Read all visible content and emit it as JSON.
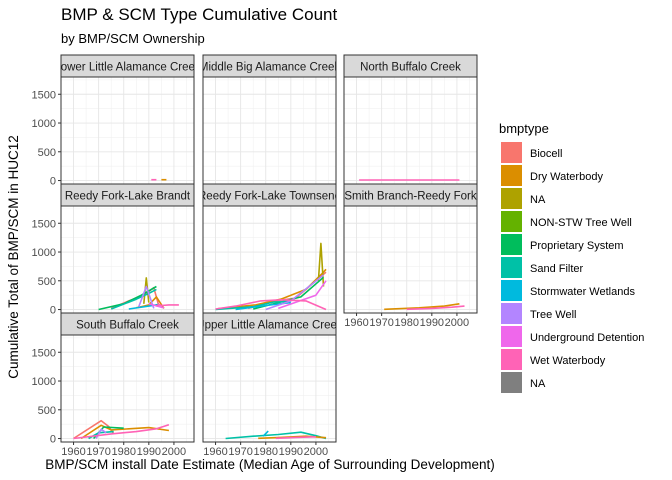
{
  "chart_data": {
    "type": "line",
    "title": "BMP & SCM Type Cumulative Count",
    "subtitle": "by BMP/SCM Ownership",
    "xlabel": "BMP/SCM install Date Estimate (Median Age of Surrounding Development)",
    "ylabel": "Cumulative Total of BMP/SCM in HUC12",
    "xlim": [
      1955,
      2008
    ],
    "ylim": [
      -60,
      1800
    ],
    "x_ticks": [
      1960,
      1970,
      1980,
      1990,
      2000
    ],
    "x_tick_labels": [
      "1960",
      "1970",
      "1980",
      "1990",
      "2000"
    ],
    "y_ticks": [
      0,
      500,
      1000,
      1500
    ],
    "y_tick_labels": [
      "0",
      "500",
      "1000",
      "1500"
    ],
    "grid": true,
    "legend": {
      "title": "bmptype",
      "placement": "right",
      "items": [
        {
          "label": "Biocell",
          "color": "#F8766D"
        },
        {
          "label": "Dry Waterbody",
          "color": "#DB8E00"
        },
        {
          "label": "NA",
          "color": "#AEA200"
        },
        {
          "label": "NON-STW Tree Well",
          "color": "#64B200"
        },
        {
          "label": "Proprietary System",
          "color": "#00BD5C"
        },
        {
          "label": "Sand Filter",
          "color": "#00C1A7"
        },
        {
          "label": "Stormwater Wetlands",
          "color": "#00BADE"
        },
        {
          "label": "Tree Well",
          "color": "#B385FF"
        },
        {
          "label": "Underground Detention",
          "color": "#EF67EB"
        },
        {
          "label": "Wet Waterbody",
          "color": "#FF63B6"
        },
        {
          "label": "NA",
          "color": "#7F7F7F"
        }
      ]
    },
    "panels": [
      {
        "strip": "Lower Little Alamance Creek",
        "series": [
          {
            "name": "Wet Waterbody",
            "x": [
              1991,
              1993
            ],
            "y": [
              15,
              15
            ]
          },
          {
            "name": "Dry Waterbody",
            "x": [
              1995,
              1997
            ],
            "y": [
              15,
              15
            ]
          }
        ]
      },
      {
        "strip": "Middle Big Alamance Creek",
        "series": []
      },
      {
        "strip": "North Buffalo Creek",
        "series": [
          {
            "name": "Wet Waterbody",
            "x": [
              1961,
              2001
            ],
            "y": [
              10,
              10
            ]
          }
        ]
      },
      {
        "strip": "Reedy Fork-Lake Brandt",
        "series": [
          {
            "name": "Biocell",
            "x": [
              1975,
              1982,
              1988,
              1992,
              1994
            ],
            "y": [
              20,
              150,
              250,
              380,
              60
            ]
          },
          {
            "name": "Dry Waterbody",
            "x": [
              1985,
              1988,
              1990,
              1993,
              1996
            ],
            "y": [
              30,
              60,
              80,
              220,
              20
            ]
          },
          {
            "name": "NA",
            "x": [
              1988,
              1989,
              1990
            ],
            "y": [
              100,
              550,
              120
            ]
          },
          {
            "name": "Proprietary System",
            "x": [
              1970,
              1980,
              1987,
              1993
            ],
            "y": [
              0,
              100,
              250,
              400
            ]
          },
          {
            "name": "Sand Filter",
            "x": [
              1975,
              1985,
              1990,
              1993
            ],
            "y": [
              10,
              180,
              280,
              350
            ]
          },
          {
            "name": "Stormwater Wetlands",
            "x": [
              1982,
              1990,
              1994
            ],
            "y": [
              10,
              60,
              90
            ]
          },
          {
            "name": "Tree Well",
            "x": [
              1986,
              1989,
              1992
            ],
            "y": [
              50,
              400,
              20
            ]
          },
          {
            "name": "Underground Detention",
            "x": [
              1990,
              1996
            ],
            "y": [
              100,
              30
            ]
          },
          {
            "name": "Wet Waterbody",
            "x": [
              1993,
              1994,
              1995,
              1998,
              2002
            ],
            "y": [
              60,
              90,
              70,
              80,
              80
            ]
          }
        ]
      },
      {
        "strip": "Reedy Fork-Lake Townsend",
        "series": [
          {
            "name": "Biocell",
            "x": [
              1973,
              1984,
              1992,
              2004
            ],
            "y": [
              20,
              150,
              200,
              650
            ]
          },
          {
            "name": "Dry Waterbody",
            "x": [
              1961,
              1976,
              1986,
              1996,
              2003,
              2004
            ],
            "y": [
              15,
              80,
              180,
              350,
              650,
              700
            ]
          },
          {
            "name": "NA",
            "x": [
              2001,
              2002,
              2003
            ],
            "y": [
              500,
              1150,
              400
            ]
          },
          {
            "name": "Proprietary System",
            "x": [
              1975,
              1985,
              1994,
              2003
            ],
            "y": [
              10,
              120,
              220,
              560
            ]
          },
          {
            "name": "Sand Filter",
            "x": [
              1960,
              1975,
              1983,
              1990
            ],
            "y": [
              0,
              50,
              130,
              140
            ]
          },
          {
            "name": "Stormwater Wetlands",
            "x": [
              1968,
              1980,
              1990
            ],
            "y": [
              0,
              70,
              120
            ]
          },
          {
            "name": "Tree Well",
            "x": [
              1980,
              1990,
              2003
            ],
            "y": [
              0,
              150,
              600
            ]
          },
          {
            "name": "Underground Detention",
            "x": [
              1985,
              2000,
              2004
            ],
            "y": [
              20,
              250,
              500
            ]
          },
          {
            "name": "Wet Waterbody",
            "x": [
              1960,
              1968,
              1978,
              1986,
              1996,
              2004
            ],
            "y": [
              10,
              60,
              150,
              170,
              150,
              0
            ]
          }
        ]
      },
      {
        "strip": "Smith Branch-Reedy Fork",
        "series": [
          {
            "name": "Dry Waterbody",
            "x": [
              1971,
              1985,
              1995,
              2001
            ],
            "y": [
              5,
              30,
              60,
              100
            ]
          },
          {
            "name": "Wet Waterbody",
            "x": [
              1980,
              1990,
              1998,
              2003
            ],
            "y": [
              5,
              20,
              40,
              60
            ]
          }
        ]
      },
      {
        "strip": "South Buffalo Creek",
        "series": [
          {
            "name": "Biocell",
            "x": [
              1960,
              1971,
              1974,
              1976
            ],
            "y": [
              0,
              310,
              210,
              80
            ]
          },
          {
            "name": "Dry Waterbody",
            "x": [
              1963,
              1971,
              1975,
              1990,
              1998
            ],
            "y": [
              0,
              230,
              150,
              190,
              140
            ]
          },
          {
            "name": "Proprietary System",
            "x": [
              1968,
              1972,
              1980
            ],
            "y": [
              0,
              200,
              180
            ]
          },
          {
            "name": "Sand Filter",
            "x": [
              1966,
              1970,
              1976
            ],
            "y": [
              0,
              100,
              120
            ]
          },
          {
            "name": "Tree Well",
            "x": [
              1969,
              1971,
              1973
            ],
            "y": [
              0,
              160,
              100
            ]
          },
          {
            "name": "Wet Waterbody",
            "x": [
              1960,
              1975,
              1985,
              1993,
              1998
            ],
            "y": [
              0,
              80,
              120,
              170,
              240
            ]
          }
        ]
      },
      {
        "strip": "Upper Little Alamance Creek",
        "series": [
          {
            "name": "Sand Filter",
            "x": [
              1964,
              1975,
              1985,
              1994,
              2000,
              2004
            ],
            "y": [
              0,
              40,
              70,
              110,
              50,
              0
            ]
          },
          {
            "name": "Stormwater Wetlands",
            "x": [
              1979,
              1981
            ],
            "y": [
              40,
              130
            ]
          },
          {
            "name": "Dry Waterbody",
            "x": [
              1977,
              1986,
              1996,
              2004
            ],
            "y": [
              5,
              20,
              40,
              15
            ]
          },
          {
            "name": "Wet Waterbody",
            "x": [
              1984,
              1992,
              2000
            ],
            "y": [
              5,
              20,
              30
            ]
          }
        ]
      }
    ]
  }
}
